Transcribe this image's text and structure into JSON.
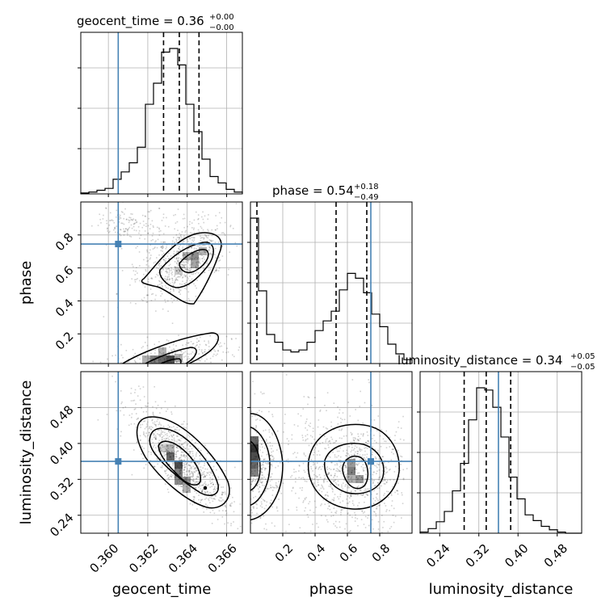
{
  "chart_data": {
    "type": "corner",
    "parameters": [
      "geocent_time",
      "phase",
      "luminosity_distance"
    ],
    "truths": {
      "geocent_time": 0.3605,
      "phase": 0.745,
      "luminosity_distance": 0.36
    },
    "colors": {
      "truth": "#4682b4",
      "hist": "#000000",
      "density": "#000000",
      "grid": "#b0b0b0"
    },
    "grid": true,
    "diagonal": [
      {
        "param": "geocent_time",
        "title": "geocent_time = 0.36",
        "sup": "+0.00",
        "sub": "−0.00",
        "range": [
          0.3586,
          0.3668
        ],
        "quantiles": [
          0.3628,
          0.3636,
          0.3646
        ],
        "bins": [
          0.3586,
          0.35901,
          0.35942,
          0.35983,
          0.36024,
          0.36065,
          0.36106,
          0.36147,
          0.36188,
          0.36229,
          0.3627,
          0.36311,
          0.36352,
          0.36393,
          0.36434,
          0.36475,
          0.36516,
          0.36557,
          0.36598,
          0.36639,
          0.3668
        ],
        "counts": [
          1,
          2,
          4,
          6,
          16,
          24,
          34,
          51,
          98,
          121,
          155,
          159,
          141,
          98,
          68,
          38,
          19,
          12,
          5,
          2
        ]
      },
      {
        "param": "phase",
        "title": "phase = 0.54",
        "sup": "+0.18",
        "sub": "−0.49",
        "range": [
          0.0,
          1.0
        ],
        "quantiles": [
          0.04,
          0.53,
          0.72
        ],
        "bins": [
          0,
          0.05,
          0.1,
          0.15,
          0.2,
          0.25,
          0.3,
          0.35,
          0.4,
          0.45,
          0.5,
          0.55,
          0.6,
          0.65,
          0.7,
          0.75,
          0.8,
          0.85,
          0.9,
          0.95,
          1.0
        ],
        "counts": [
          150,
          75,
          30,
          22,
          14,
          12,
          14,
          22,
          34,
          44,
          54,
          76,
          93,
          88,
          73,
          51,
          38,
          20,
          10,
          4
        ]
      },
      {
        "param": "luminosity_distance",
        "title": "luminosity_distance = 0.34",
        "sup": "+0.05",
        "sub": "−0.05",
        "range": [
          0.2,
          0.53
        ],
        "quantiles": [
          0.29,
          0.335,
          0.385
        ],
        "bins": [
          0.2,
          0.2165,
          0.233,
          0.2495,
          0.266,
          0.2825,
          0.299,
          0.3155,
          0.332,
          0.3485,
          0.365,
          0.3815,
          0.398,
          0.4145,
          0.431,
          0.4475,
          0.464,
          0.4805,
          0.497,
          0.5135,
          0.53
        ],
        "counts": [
          1,
          4,
          10,
          19,
          37,
          61,
          99,
          127,
          125,
          110,
          84,
          49,
          30,
          16,
          11,
          6,
          3,
          1,
          0,
          0
        ]
      }
    ],
    "x_ticks": {
      "geocent_time": [
        "0.360",
        "0.362",
        "0.364",
        "0.366"
      ],
      "phase": [
        "0.2",
        "0.4",
        "0.6",
        "0.8"
      ],
      "luminosity_distance": [
        "0.24",
        "0.32",
        "0.40",
        "0.48"
      ]
    },
    "y_ticks": {
      "phase": [
        "0.2",
        "0.4",
        "0.6",
        "0.8"
      ],
      "luminosity_distance": [
        "0.24",
        "0.32",
        "0.40",
        "0.48"
      ]
    },
    "x_tick_values": {
      "geocent_time": [
        0.36,
        0.362,
        0.364,
        0.366
      ],
      "phase": [
        0.2,
        0.4,
        0.6,
        0.8
      ],
      "luminosity_distance": [
        0.24,
        0.32,
        0.4,
        0.48
      ]
    },
    "y_tick_values": {
      "phase": [
        0.2,
        0.4,
        0.6,
        0.8
      ],
      "luminosity_distance": [
        0.24,
        0.32,
        0.4,
        0.48
      ]
    },
    "xlabels": [
      "geocent_time",
      "phase",
      "luminosity_distance"
    ],
    "ylabels": [
      "phase",
      "luminosity_distance"
    ],
    "density_ranges": {
      "phase": [
        0.02,
        1.0
      ],
      "luminosity_distance": [
        0.2,
        0.56
      ]
    }
  }
}
